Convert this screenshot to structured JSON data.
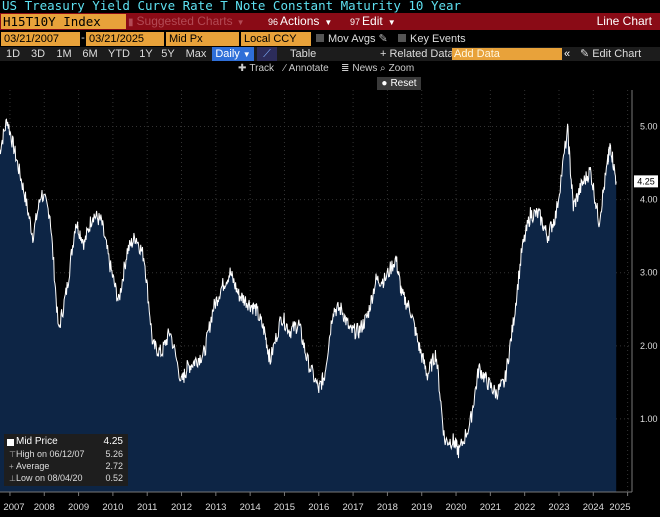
{
  "title": "US Treasury Yield Curve Rate T Note Constant Maturity 10 Year",
  "toolbar": {
    "ticker": "H15T10Y Index",
    "suggested_charts": "Suggested Charts",
    "actions_num": "96",
    "actions": "Actions",
    "edit_num": "97",
    "edit": "Edit",
    "chart_type": "Line Chart"
  },
  "settings": {
    "start_date": "03/21/2007",
    "end_date": "03/21/2025",
    "price_field": "Mid Px",
    "currency": "Local CCY",
    "mov_avgs": "Mov Avgs",
    "key_events": "Key Events"
  },
  "periods": [
    "1D",
    "3D",
    "1M",
    "6M",
    "YTD",
    "1Y",
    "5Y",
    "Max"
  ],
  "frequency": "Daily",
  "row3": {
    "table": "Table",
    "related_data": "Related Data",
    "add_data_placeholder": "Add Data",
    "edit_chart": "Edit Chart"
  },
  "tools": {
    "track": "Track",
    "annotate": "Annotate",
    "news": "News",
    "zoom": "Zoom",
    "reset": "Reset"
  },
  "chart_data": {
    "type": "area",
    "series": [
      {
        "name": "Mid Price",
        "x": [
          "2007-03",
          "2007-06",
          "2007-09",
          "2007-12",
          "2008-03",
          "2008-06",
          "2008-09",
          "2008-12",
          "2009-03",
          "2009-06",
          "2009-09",
          "2009-12",
          "2010-03",
          "2010-06",
          "2010-09",
          "2010-12",
          "2011-03",
          "2011-06",
          "2011-09",
          "2011-12",
          "2012-03",
          "2012-07",
          "2012-09",
          "2012-12",
          "2013-03",
          "2013-06",
          "2013-09",
          "2013-12",
          "2014-03",
          "2014-06",
          "2014-09",
          "2014-12",
          "2015-02",
          "2015-06",
          "2015-09",
          "2015-12",
          "2016-03",
          "2016-07",
          "2016-09",
          "2016-12",
          "2017-03",
          "2017-06",
          "2017-09",
          "2017-12",
          "2018-03",
          "2018-06",
          "2018-10",
          "2018-12",
          "2019-03",
          "2019-06",
          "2019-09",
          "2019-12",
          "2020-03",
          "2020-06",
          "2020-08",
          "2020-12",
          "2021-03",
          "2021-06",
          "2021-09",
          "2021-12",
          "2022-03",
          "2022-06",
          "2022-09",
          "2022-12",
          "2023-03",
          "2023-06",
          "2023-10",
          "2023-12",
          "2024-03",
          "2024-06",
          "2024-09",
          "2024-12",
          "2025-01",
          "2025-03"
        ],
        "values": [
          4.6,
          5.1,
          4.6,
          4.1,
          3.5,
          4.1,
          3.8,
          2.2,
          2.8,
          3.7,
          3.4,
          3.8,
          3.7,
          3.1,
          2.6,
          3.3,
          3.5,
          3.2,
          2.0,
          1.9,
          2.2,
          1.5,
          1.7,
          1.8,
          1.9,
          2.5,
          2.8,
          3.0,
          2.7,
          2.6,
          2.5,
          2.2,
          1.8,
          2.4,
          2.2,
          2.3,
          1.8,
          1.4,
          1.6,
          2.5,
          2.5,
          2.2,
          2.2,
          2.4,
          2.9,
          2.9,
          3.2,
          2.7,
          2.5,
          2.0,
          1.6,
          1.9,
          0.7,
          0.7,
          0.55,
          0.95,
          1.7,
          1.5,
          1.35,
          1.5,
          2.3,
          3.3,
          3.8,
          3.8,
          3.5,
          3.8,
          4.95,
          3.9,
          4.2,
          4.4,
          3.7,
          4.5,
          4.75,
          4.25
        ]
      }
    ],
    "x_ticks": [
      "2007",
      "2008",
      "2009",
      "2010",
      "2011",
      "2012",
      "2013",
      "2014",
      "2015",
      "2016",
      "2017",
      "2018",
      "2019",
      "2020",
      "2021",
      "2022",
      "2023",
      "2024",
      "2025"
    ],
    "y_ticks": [
      "1.00",
      "2.00",
      "3.00",
      "4.00",
      "5.00"
    ],
    "ylim": [
      0,
      5.5
    ],
    "last_value": "4.25",
    "colors": {
      "area": "#0d2545",
      "line": "#ffffff",
      "background": "#000000",
      "last_tag": "#ffffff"
    }
  },
  "legend": {
    "mid_price_label": "Mid Price",
    "mid_price_value": "4.25",
    "high_label": "High on 06/12/07",
    "high_value": "5.26",
    "avg_label": "Average",
    "avg_value": "2.72",
    "low_label": "Low on 08/04/20",
    "low_value": "0.52"
  }
}
